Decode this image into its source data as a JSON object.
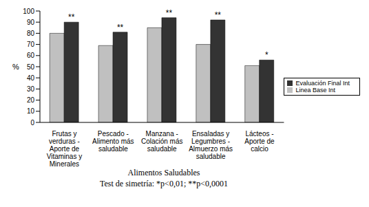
{
  "chart_data": {
    "type": "bar",
    "x_label": "Alimentos Saludables",
    "y_label": "%",
    "subtitle": "Test de simetría: *p<0,01; **p<0,0001",
    "categories": [
      "Frutas y verduras - Aporte de Vitaminas y Minerales",
      "Pescado - Alimento más saludable",
      "Manzana - Colación más saludable",
      "Ensaladas y Legumbres - Almuerzo más saludable",
      "Lácteos - Aporte de calcio"
    ],
    "series": [
      {
        "name": "Linea Base Int",
        "color": "#c0c0c0",
        "values": [
          80,
          69,
          85,
          70,
          51
        ]
      },
      {
        "name": "Evaluación Final Int",
        "color": "#333333",
        "values": [
          90,
          81,
          94,
          92,
          56
        ]
      }
    ],
    "annotations": [
      "**",
      "**",
      "**",
      "**",
      "*"
    ],
    "ylim": [
      0,
      100
    ],
    "yticks": [
      0,
      10,
      20,
      30,
      40,
      50,
      60,
      70,
      80,
      90,
      100
    ],
    "grid": false,
    "legend": "right"
  }
}
